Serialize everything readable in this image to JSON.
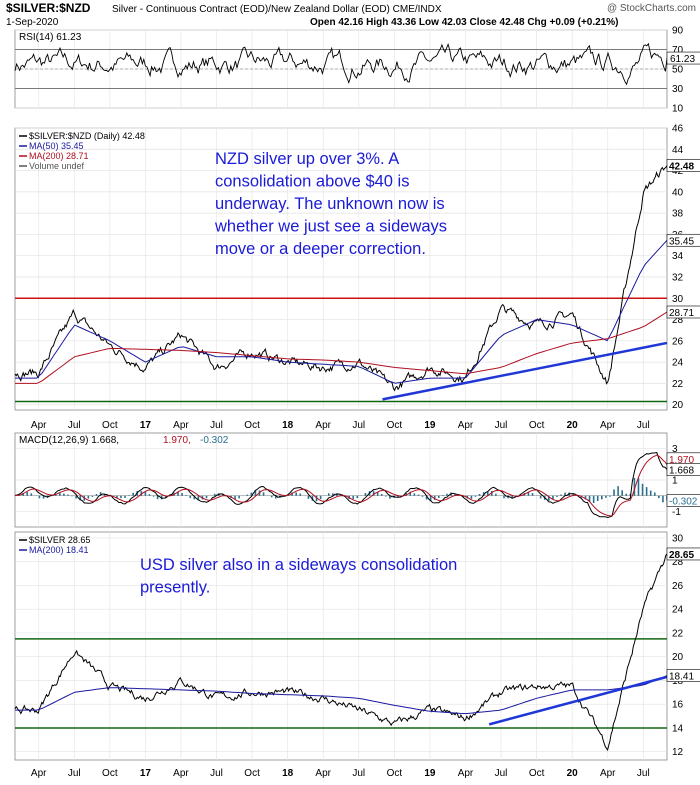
{
  "header": {
    "symbol": "$SILVER:$NZD",
    "description": "Silver - Continuous Contract (EOD)/New Zealand Dollar (EOD) CME/INDX",
    "credit": "@ StockCharts.com",
    "date": "1-Sep-2020",
    "ohlc": "Open 42.16  High 43.36  Low 42.03  Close 42.48  Chg +0.09 (+0.21%)"
  },
  "time_axis": [
    "Apr",
    "Jul",
    "Oct",
    "17",
    "Apr",
    "Jul",
    "Oct",
    "18",
    "Apr",
    "Jul",
    "Oct",
    "19",
    "Apr",
    "Jul",
    "Oct",
    "20",
    "Apr",
    "Jul"
  ],
  "colors": {
    "price": "#000000",
    "ma50": "#1a1aa0",
    "ma200": "#b01020",
    "resistance": "#cc1111",
    "support": "#116611",
    "trend": "#1f37d6",
    "annotation": "#1a1ad8",
    "macd_hist": "#2a6f8f"
  },
  "chart_data": [
    {
      "type": "line",
      "panel": "rsi",
      "title": "RSI(14) 61.23",
      "value": 61.23,
      "y_ticks": [
        10,
        30,
        50,
        70,
        90
      ],
      "ylim": [
        10,
        90
      ],
      "reference_lines": [
        30,
        50,
        70
      ]
    },
    {
      "type": "line",
      "panel": "nzd",
      "legend": [
        "$SILVER:$NZD (Daily) 42.48",
        "MA(50) 35.45",
        "MA(200) 28.71",
        "Volume undef"
      ],
      "y_ticks": [
        20,
        22,
        24,
        26,
        28,
        30,
        32,
        34,
        36,
        38,
        40,
        42,
        44,
        46
      ],
      "ylim": [
        19.5,
        46
      ],
      "last_labels": [
        "42.48",
        "35.45",
        "28.71"
      ],
      "annotation": "NZD silver up over 3%. A consolidation above $40 is underway. The unknown now is whether we just see a sideways move or a deeper correction.",
      "horizontal_lines": {
        "resistance": 30,
        "support": 20.3
      },
      "trendline": {
        "from": [
          "Sep 2018",
          20.5
        ],
        "to": [
          "Sep 2020",
          25.8
        ]
      },
      "series": [
        {
          "name": "$SILVER:$NZD (Daily)",
          "x": [
            "Apr 2016",
            "Jul 2016",
            "Oct 2016",
            "Jan 2017",
            "Apr 2017",
            "Jul 2017",
            "Oct 2017",
            "Jan 2018",
            "Apr 2018",
            "Jul 2018",
            "Oct 2018",
            "Jan 2019",
            "Apr 2019",
            "Jul 2019",
            "Oct 2019",
            "Jan 2020",
            "Apr 2020",
            "Jul 2020",
            "Sep 2020"
          ],
          "values": [
            23,
            28.5,
            25.5,
            23.5,
            26.5,
            23.5,
            25,
            24,
            23.5,
            24,
            21.5,
            23.5,
            22.5,
            29,
            27.5,
            28.5,
            22,
            40,
            42.48
          ]
        },
        {
          "name": "MA(50)",
          "x": [
            "Apr 2016",
            "Jul 2016",
            "Oct 2016",
            "Jan 2017",
            "Apr 2017",
            "Jul 2017",
            "Oct 2017",
            "Jan 2018",
            "Apr 2018",
            "Jul 2018",
            "Oct 2018",
            "Jan 2019",
            "Apr 2019",
            "Jul 2019",
            "Oct 2019",
            "Jan 2020",
            "Apr 2020",
            "Jul 2020",
            "Sep 2020"
          ],
          "values": [
            22.5,
            27.5,
            26,
            24,
            25.5,
            24.5,
            24.5,
            24,
            23.8,
            23.6,
            22,
            22.5,
            22.5,
            26.5,
            28,
            27.5,
            26,
            33,
            35.45
          ]
        },
        {
          "name": "MA(200)",
          "x": [
            "Apr 2016",
            "Jul 2016",
            "Oct 2016",
            "Jan 2017",
            "Apr 2017",
            "Jul 2017",
            "Oct 2017",
            "Jan 2018",
            "Apr 2018",
            "Jul 2018",
            "Oct 2018",
            "Jan 2019",
            "Apr 2019",
            "Jul 2019",
            "Oct 2019",
            "Jan 2020",
            "Apr 2020",
            "Jul 2020",
            "Sep 2020"
          ],
          "values": [
            22,
            24.5,
            25.3,
            25.2,
            25.1,
            24.9,
            24.6,
            24.3,
            24.2,
            24,
            23.5,
            23.2,
            22.9,
            23.5,
            24.8,
            25.8,
            26.2,
            27.3,
            28.71
          ]
        }
      ]
    },
    {
      "type": "line",
      "panel": "macd",
      "title": "MACD(12,26,9) 1.668, 1.970, -0.302",
      "legend": [
        "MACD(12,26,9) 1.668,",
        "1.970,",
        "-0.302"
      ],
      "y_ticks": [
        -1,
        1,
        3
      ],
      "ylim": [
        -2,
        4
      ],
      "last_labels": [
        "1.970",
        "1.668",
        "-0.302"
      ]
    },
    {
      "type": "line",
      "panel": "usd",
      "legend": [
        "$SILVER 28.65",
        "MA(200) 18.41"
      ],
      "y_ticks": [
        12,
        14,
        16,
        18,
        20,
        22,
        24,
        26,
        28,
        30
      ],
      "ylim": [
        11.3,
        30.5
      ],
      "last_labels": [
        "28.65",
        "18.41"
      ],
      "annotation": "USD silver also in a sideways consolidation presently.",
      "horizontal_lines": {
        "resistance": 21.5,
        "support": 14
      },
      "trendline": {
        "from": [
          "Jun 2019",
          14.3
        ],
        "to": [
          "Sep 2020",
          18.3
        ]
      },
      "series": [
        {
          "name": "$SILVER",
          "x": [
            "Apr 2016",
            "Jul 2016",
            "Oct 2016",
            "Jan 2017",
            "Apr 2017",
            "Jul 2017",
            "Oct 2017",
            "Jan 2018",
            "Apr 2018",
            "Jul 2018",
            "Oct 2018",
            "Jan 2019",
            "Apr 2019",
            "Jul 2019",
            "Oct 2019",
            "Jan 2020",
            "Apr 2020",
            "Jul 2020",
            "Sep 2020"
          ],
          "values": [
            15.5,
            20.5,
            17.5,
            16.5,
            18,
            16.5,
            17,
            17,
            16.5,
            15.5,
            14.3,
            15.5,
            14.8,
            17,
            17.5,
            17.5,
            12.5,
            24,
            28.65
          ]
        },
        {
          "name": "MA(200)",
          "x": [
            "Apr 2016",
            "Jul 2016",
            "Oct 2016",
            "Jan 2017",
            "Apr 2017",
            "Jul 2017",
            "Oct 2017",
            "Jan 2018",
            "Apr 2018",
            "Jul 2018",
            "Oct 2018",
            "Jan 2019",
            "Apr 2019",
            "Jul 2019",
            "Oct 2019",
            "Jan 2020",
            "Apr 2020",
            "Jul 2020",
            "Sep 2020"
          ],
          "values": [
            15.5,
            17,
            17.4,
            17.3,
            17.2,
            17.1,
            16.9,
            16.8,
            16.7,
            16.5,
            15.9,
            15.4,
            15.2,
            15.5,
            16.5,
            17.2,
            17.2,
            17.6,
            18.41
          ]
        }
      ]
    }
  ]
}
